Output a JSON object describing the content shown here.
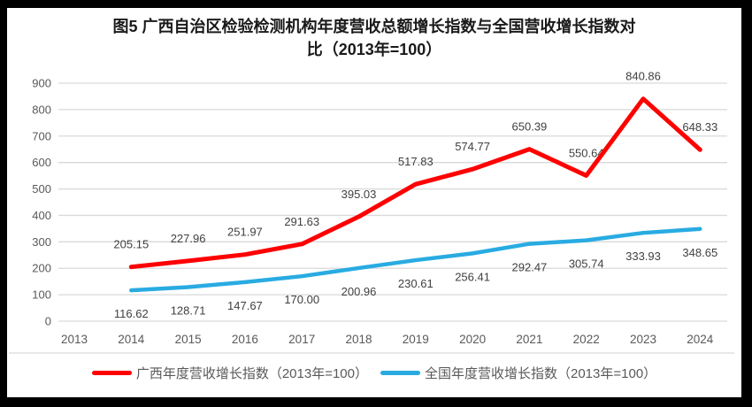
{
  "figure": {
    "title": {
      "line1": "图5  广西自治区检验检测机构年度营收总额增长指数与全国营收增长指数对",
      "line2": "比（2013年=100）"
    }
  },
  "chart_data": {
    "type": "line",
    "title": "图5 广西自治区检验检测机构年度营收总额增长指数与全国营收增长指数对比（2013年=100）",
    "categories": [
      "2013",
      "2014",
      "2015",
      "2016",
      "2017",
      "2018",
      "2019",
      "2020",
      "2021",
      "2022",
      "2023",
      "2024"
    ],
    "series": [
      {
        "name": "广西年度营收增长指数（2013年=100）",
        "color": "#fe0000",
        "values": [
          null,
          205.15,
          227.96,
          251.97,
          291.63,
          395.03,
          517.83,
          574.77,
          650.39,
          550.64,
          840.86,
          648.33
        ]
      },
      {
        "name": "全国年度营收增长指数（2013年=100）",
        "color": "#29abe2",
        "values": [
          null,
          116.62,
          128.71,
          147.67,
          170.0,
          200.96,
          230.61,
          256.41,
          292.47,
          305.74,
          333.93,
          348.65
        ]
      }
    ],
    "xlabel": "",
    "ylabel": "",
    "ylim": [
      0,
      900
    ],
    "yticks": [
      "0",
      "100",
      "200",
      "300",
      "400",
      "500",
      "600",
      "700",
      "800",
      "900"
    ],
    "grid": true,
    "legend_position": "bottom",
    "value_label_decimals": 2,
    "colors": {
      "gridline": "#d9d9d9",
      "tick_label": "#595959",
      "value_label": "#404040",
      "separator": "#d9d9d9"
    }
  }
}
